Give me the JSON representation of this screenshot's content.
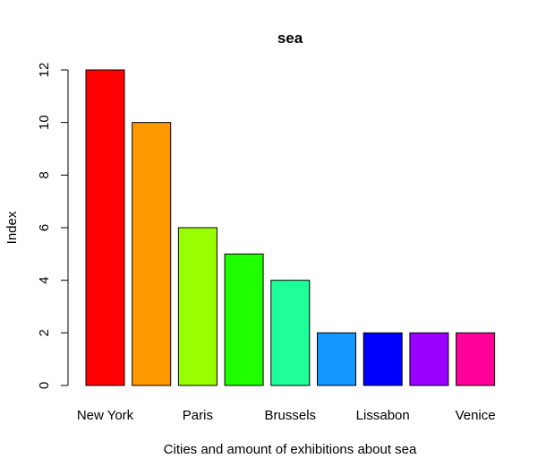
{
  "chart_data": {
    "type": "bar",
    "title": "sea",
    "xlabel": "Cities and amount of exhibitions about sea",
    "ylabel": "Index",
    "ylim": [
      0,
      12
    ],
    "yticks": [
      0,
      2,
      4,
      6,
      8,
      10,
      12
    ],
    "categories": [
      "New York",
      "",
      "Paris",
      "",
      "Brussels",
      "",
      "Lissabon",
      "",
      "Venice"
    ],
    "values": [
      12,
      10,
      6,
      5,
      4,
      2,
      2,
      2,
      2
    ],
    "colors": [
      "#FF0000",
      "#FF9900",
      "#99FF00",
      "#1FFF00",
      "#1FFF99",
      "#1497FF",
      "#0000FF",
      "#9900FF",
      "#FF0099"
    ],
    "grid": false,
    "legend": "none"
  }
}
